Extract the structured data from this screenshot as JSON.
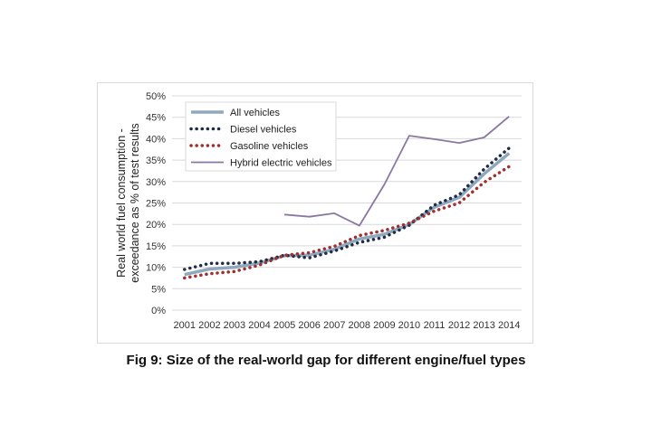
{
  "caption": "Fig 9: Size of the real-world gap for different engine/fuel types",
  "chart_data": {
    "type": "line",
    "title": "",
    "ylabel_lines": [
      "Real world fuel consumption -",
      "exceedance as % of test results"
    ],
    "xlabel": "",
    "ylim": [
      0,
      50
    ],
    "yticks": [
      "0%",
      "5%",
      "10%",
      "15%",
      "20%",
      "25%",
      "30%",
      "35%",
      "40%",
      "45%",
      "50%"
    ],
    "grid": true,
    "legend_position": "top-left",
    "x": [
      "2001",
      "2002",
      "2003",
      "2004",
      "2005",
      "2006",
      "2007",
      "2008",
      "2009",
      "2010",
      "2011",
      "2012",
      "2013",
      "2014"
    ],
    "series": [
      {
        "name": "All vehicles",
        "style": "solid-thick",
        "color": "#8fa8bd",
        "values": [
          8.3,
          9.6,
          10.0,
          11.0,
          12.7,
          12.8,
          14.2,
          16.6,
          17.7,
          20.0,
          24.0,
          26.3,
          31.8,
          36.6
        ]
      },
      {
        "name": "Diesel vehicles",
        "style": "dotted",
        "color": "#1f2d45",
        "values": [
          9.5,
          10.9,
          10.9,
          11.3,
          12.8,
          12.2,
          13.8,
          15.8,
          17.0,
          19.8,
          24.5,
          26.9,
          32.9,
          37.8
        ]
      },
      {
        "name": "Gasoline vehicles",
        "style": "dotted",
        "color": "#9e3030",
        "values": [
          7.5,
          8.5,
          9.0,
          10.5,
          12.8,
          13.4,
          14.9,
          17.4,
          18.6,
          20.3,
          23.1,
          25.0,
          29.8,
          33.5
        ]
      },
      {
        "name": "Hybrid electric vehicles",
        "style": "solid",
        "color": "#8a78a3",
        "values": [
          null,
          null,
          null,
          null,
          22.3,
          21.8,
          22.6,
          19.7,
          29.3,
          40.7,
          39.9,
          39.0,
          40.3,
          45.2
        ]
      }
    ]
  }
}
